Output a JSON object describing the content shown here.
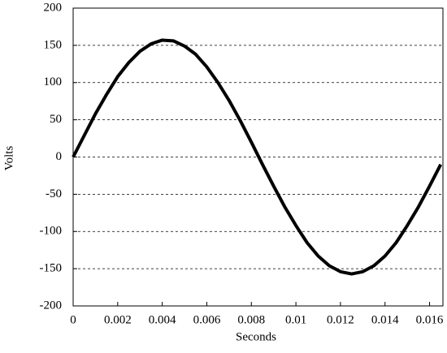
{
  "chart_data": {
    "type": "line",
    "x_label": "Seconds",
    "y_label": "Volts",
    "x": [
      0,
      0.0005,
      0.001,
      0.0015,
      0.002,
      0.0025,
      0.003,
      0.0035,
      0.004,
      0.0045,
      0.005,
      0.0055,
      0.006,
      0.0065,
      0.007,
      0.0075,
      0.008,
      0.0085,
      0.009,
      0.0095,
      0.01,
      0.0105,
      0.011,
      0.0115,
      0.012,
      0.0125,
      0.013,
      0.0135,
      0.014,
      0.0145,
      0.015,
      0.0155,
      0.016,
      0.0165
    ],
    "series": [
      {
        "color": "#000000",
        "values": [
          0,
          29,
          58,
          84,
          108,
          127,
          142,
          152,
          157,
          156,
          149,
          138,
          121,
          100,
          76,
          49,
          20,
          -10,
          -39,
          -67,
          -92,
          -115,
          -133,
          -146,
          -154,
          -157,
          -154,
          -146,
          -133,
          -115,
          -92,
          -67,
          -39,
          -10
        ]
      }
    ],
    "xlim": [
      0,
      0.0166
    ],
    "xticks": [
      0,
      0.002,
      0.004,
      0.006,
      0.008,
      0.01,
      0.012,
      0.014,
      0.016
    ],
    "ylim": [
      -200,
      200
    ],
    "yticks": [
      -200,
      -150,
      -100,
      -50,
      0,
      50,
      100,
      150,
      200
    ],
    "grid": true
  }
}
